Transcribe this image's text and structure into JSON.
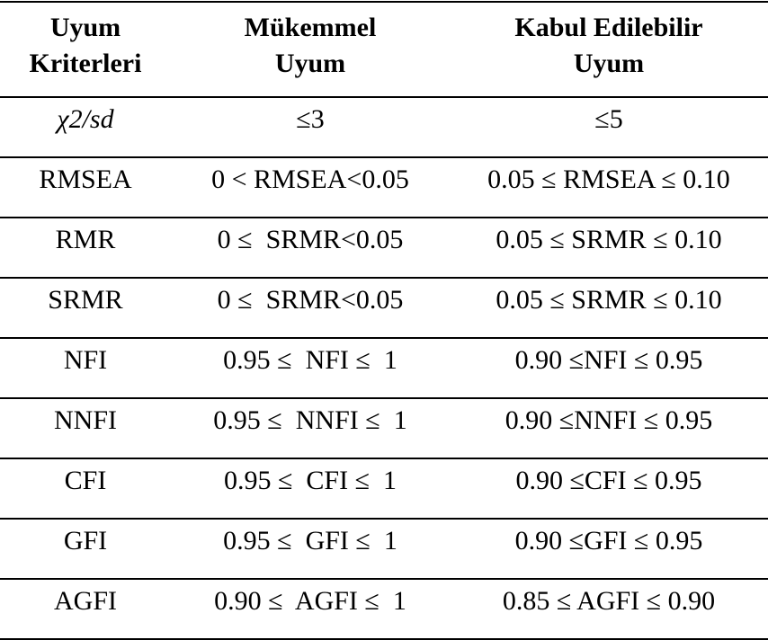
{
  "table": {
    "header": [
      [
        "Uyum",
        "Kriterleri"
      ],
      [
        "Mükemmel",
        "Uyum"
      ],
      [
        "Kabul Edilebilir",
        "Uyum"
      ]
    ],
    "rows": [
      [
        "χ2/sd",
        "≤3",
        "≤5"
      ],
      [
        "RMSEA",
        "0 < RMSEA<0.05",
        "0.05 ≤ RMSEA ≤ 0.10"
      ],
      [
        "RMR",
        "0 ≤  SRMR<0.05",
        "0.05 ≤ SRMR ≤ 0.10"
      ],
      [
        "SRMR",
        "0 ≤  SRMR<0.05",
        "0.05 ≤ SRMR ≤ 0.10"
      ],
      [
        "NFI",
        "0.95 ≤  NFI ≤  1",
        "0.90 ≤NFI ≤ 0.95"
      ],
      [
        "NNFI",
        "0.95 ≤  NNFI ≤  1",
        "0.90 ≤NNFI ≤ 0.95"
      ],
      [
        "CFI",
        "0.95 ≤  CFI ≤  1",
        "0.90 ≤CFI ≤ 0.95"
      ],
      [
        "GFI",
        "0.95 ≤  GFI ≤  1",
        "0.90 ≤GFI ≤ 0.95"
      ],
      [
        "AGFI",
        "0.90 ≤  AGFI ≤  1",
        "0.85 ≤ AGFI ≤ 0.90"
      ]
    ]
  }
}
